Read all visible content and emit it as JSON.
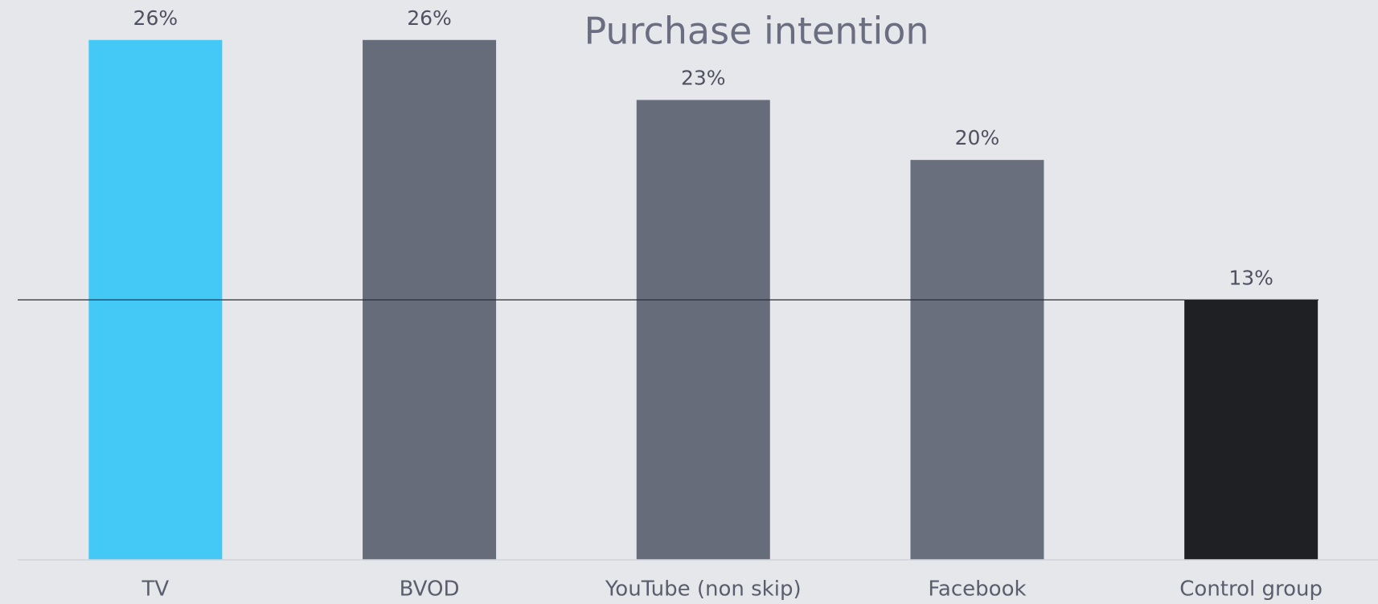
{
  "chart_data": {
    "type": "bar",
    "title": "Purchase intention",
    "categories": [
      "TV",
      "BVOD",
      "YouTube (non skip)",
      "Facebook",
      "Control group"
    ],
    "values": [
      26,
      26,
      23,
      20,
      13
    ],
    "value_labels": [
      "26%",
      "26%",
      "23%",
      "20%",
      "13%"
    ],
    "colors": [
      "#44c9f6",
      "#676c7b",
      "#676c7b",
      "#6a6f7e",
      "#1f2024"
    ],
    "reference_line": 13,
    "ylim": [
      0,
      28
    ]
  }
}
